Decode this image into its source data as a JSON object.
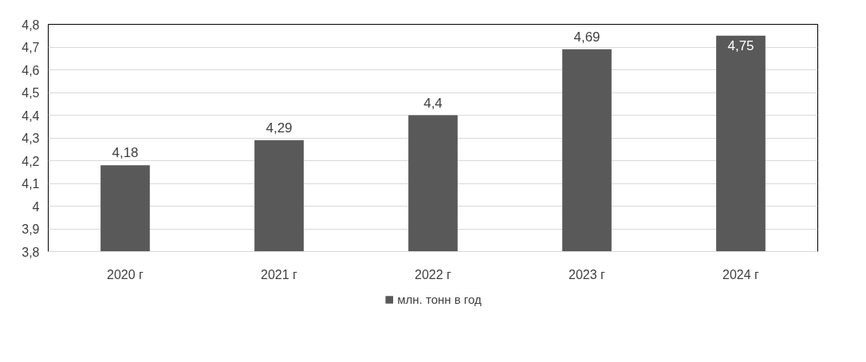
{
  "chart_data": {
    "type": "bar",
    "categories": [
      "2020 г",
      "2021 г",
      "2022 г",
      "2023 г",
      "2024 г"
    ],
    "series": [
      {
        "name": "млн. тонн в год",
        "color": "#595959",
        "values": [
          4.18,
          4.29,
          4.4,
          4.69,
          4.75
        ],
        "value_labels": [
          "4,18",
          "4,29",
          "4,4",
          "4,69",
          "4,75"
        ]
      }
    ],
    "ylim": [
      3.8,
      4.8
    ],
    "yticks": [
      {
        "value": 3.8,
        "label": "3,8"
      },
      {
        "value": 3.9,
        "label": "3,9"
      },
      {
        "value": 4.0,
        "label": "4"
      },
      {
        "value": 4.1,
        "label": "4,1"
      },
      {
        "value": 4.2,
        "label": "4,2"
      },
      {
        "value": 4.3,
        "label": "4,3"
      },
      {
        "value": 4.4,
        "label": "4,4"
      },
      {
        "value": 4.5,
        "label": "4,5"
      },
      {
        "value": 4.6,
        "label": "4,6"
      },
      {
        "value": 4.7,
        "label": "4,7"
      },
      {
        "value": 4.8,
        "label": "4,8"
      }
    ],
    "grid": "y",
    "legend": "bottom"
  }
}
